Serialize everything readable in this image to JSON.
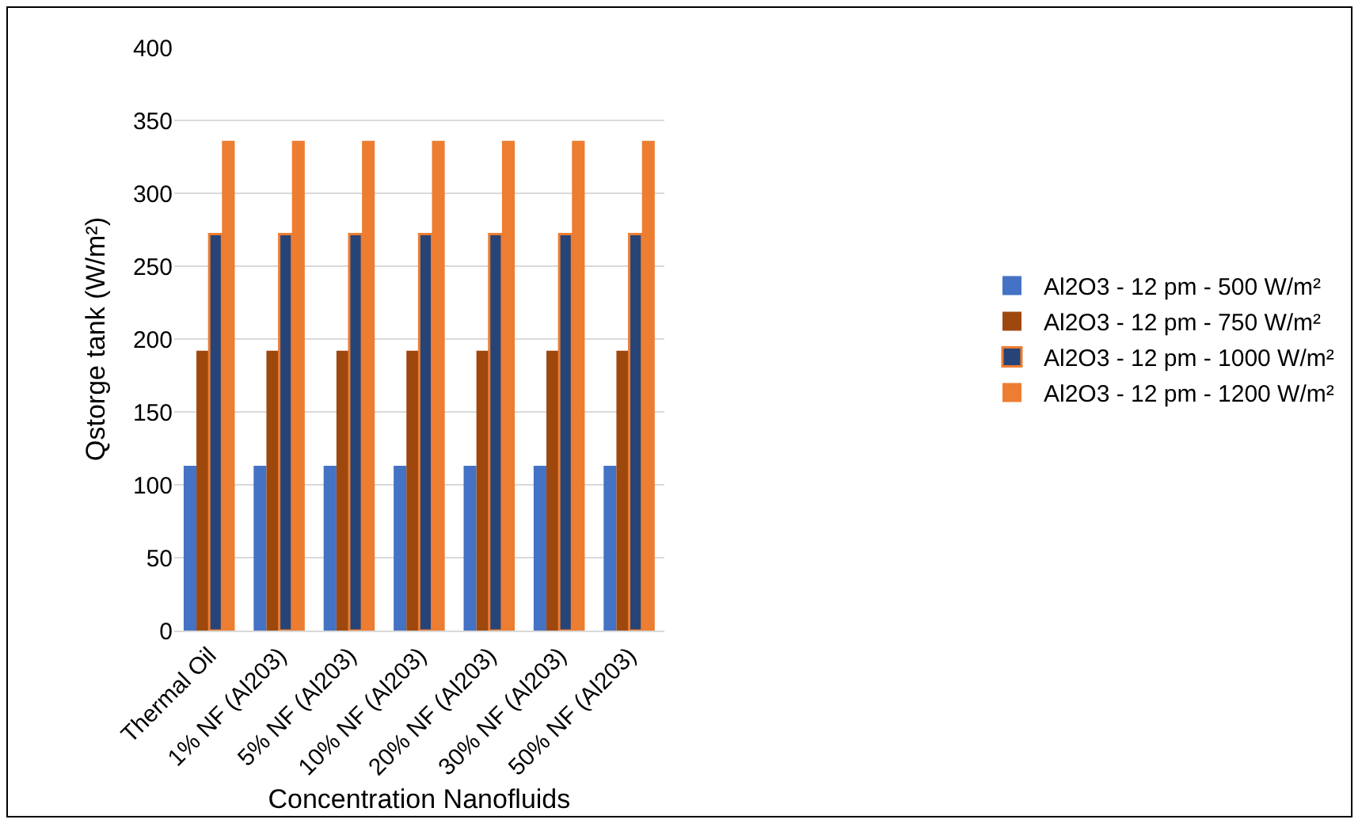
{
  "chart_data": {
    "type": "bar",
    "xlabel": "Concentration Nanofluids",
    "ylabel": "Qstorge tank (W/m²)",
    "categories": [
      "Thermal Oil",
      "1% NF (Al203)",
      "5% NF (Al203)",
      "10% NF (Al203)",
      "20% NF (Al203)",
      "30% NF (Al203)",
      "50% NF (Al203)"
    ],
    "series": [
      {
        "name": "Al2O3 - 12 pm - 500 W/m²",
        "color": "#4472c4",
        "values": [
          113,
          113,
          113,
          113,
          113,
          113,
          113
        ]
      },
      {
        "name": "Al2O3 - 12 pm - 750 W/m²",
        "color": "#9e480e",
        "values": [
          192,
          192,
          192,
          192,
          192,
          192,
          192
        ]
      },
      {
        "name": "Al2O3 - 12 pm - 1000 W/m²",
        "color": "#264478",
        "values": [
          272,
          272,
          272,
          272,
          272,
          272,
          272
        ]
      },
      {
        "name": "Al2O3 - 12 pm - 1200 W/m²",
        "color": "#ed7d31",
        "values": [
          336,
          336,
          336,
          336,
          336,
          336,
          336
        ]
      }
    ],
    "ylim": [
      0,
      400
    ],
    "yticks": [
      0,
      50,
      100,
      150,
      200,
      250,
      300,
      350,
      400
    ],
    "grid": "y",
    "legend": "right"
  }
}
